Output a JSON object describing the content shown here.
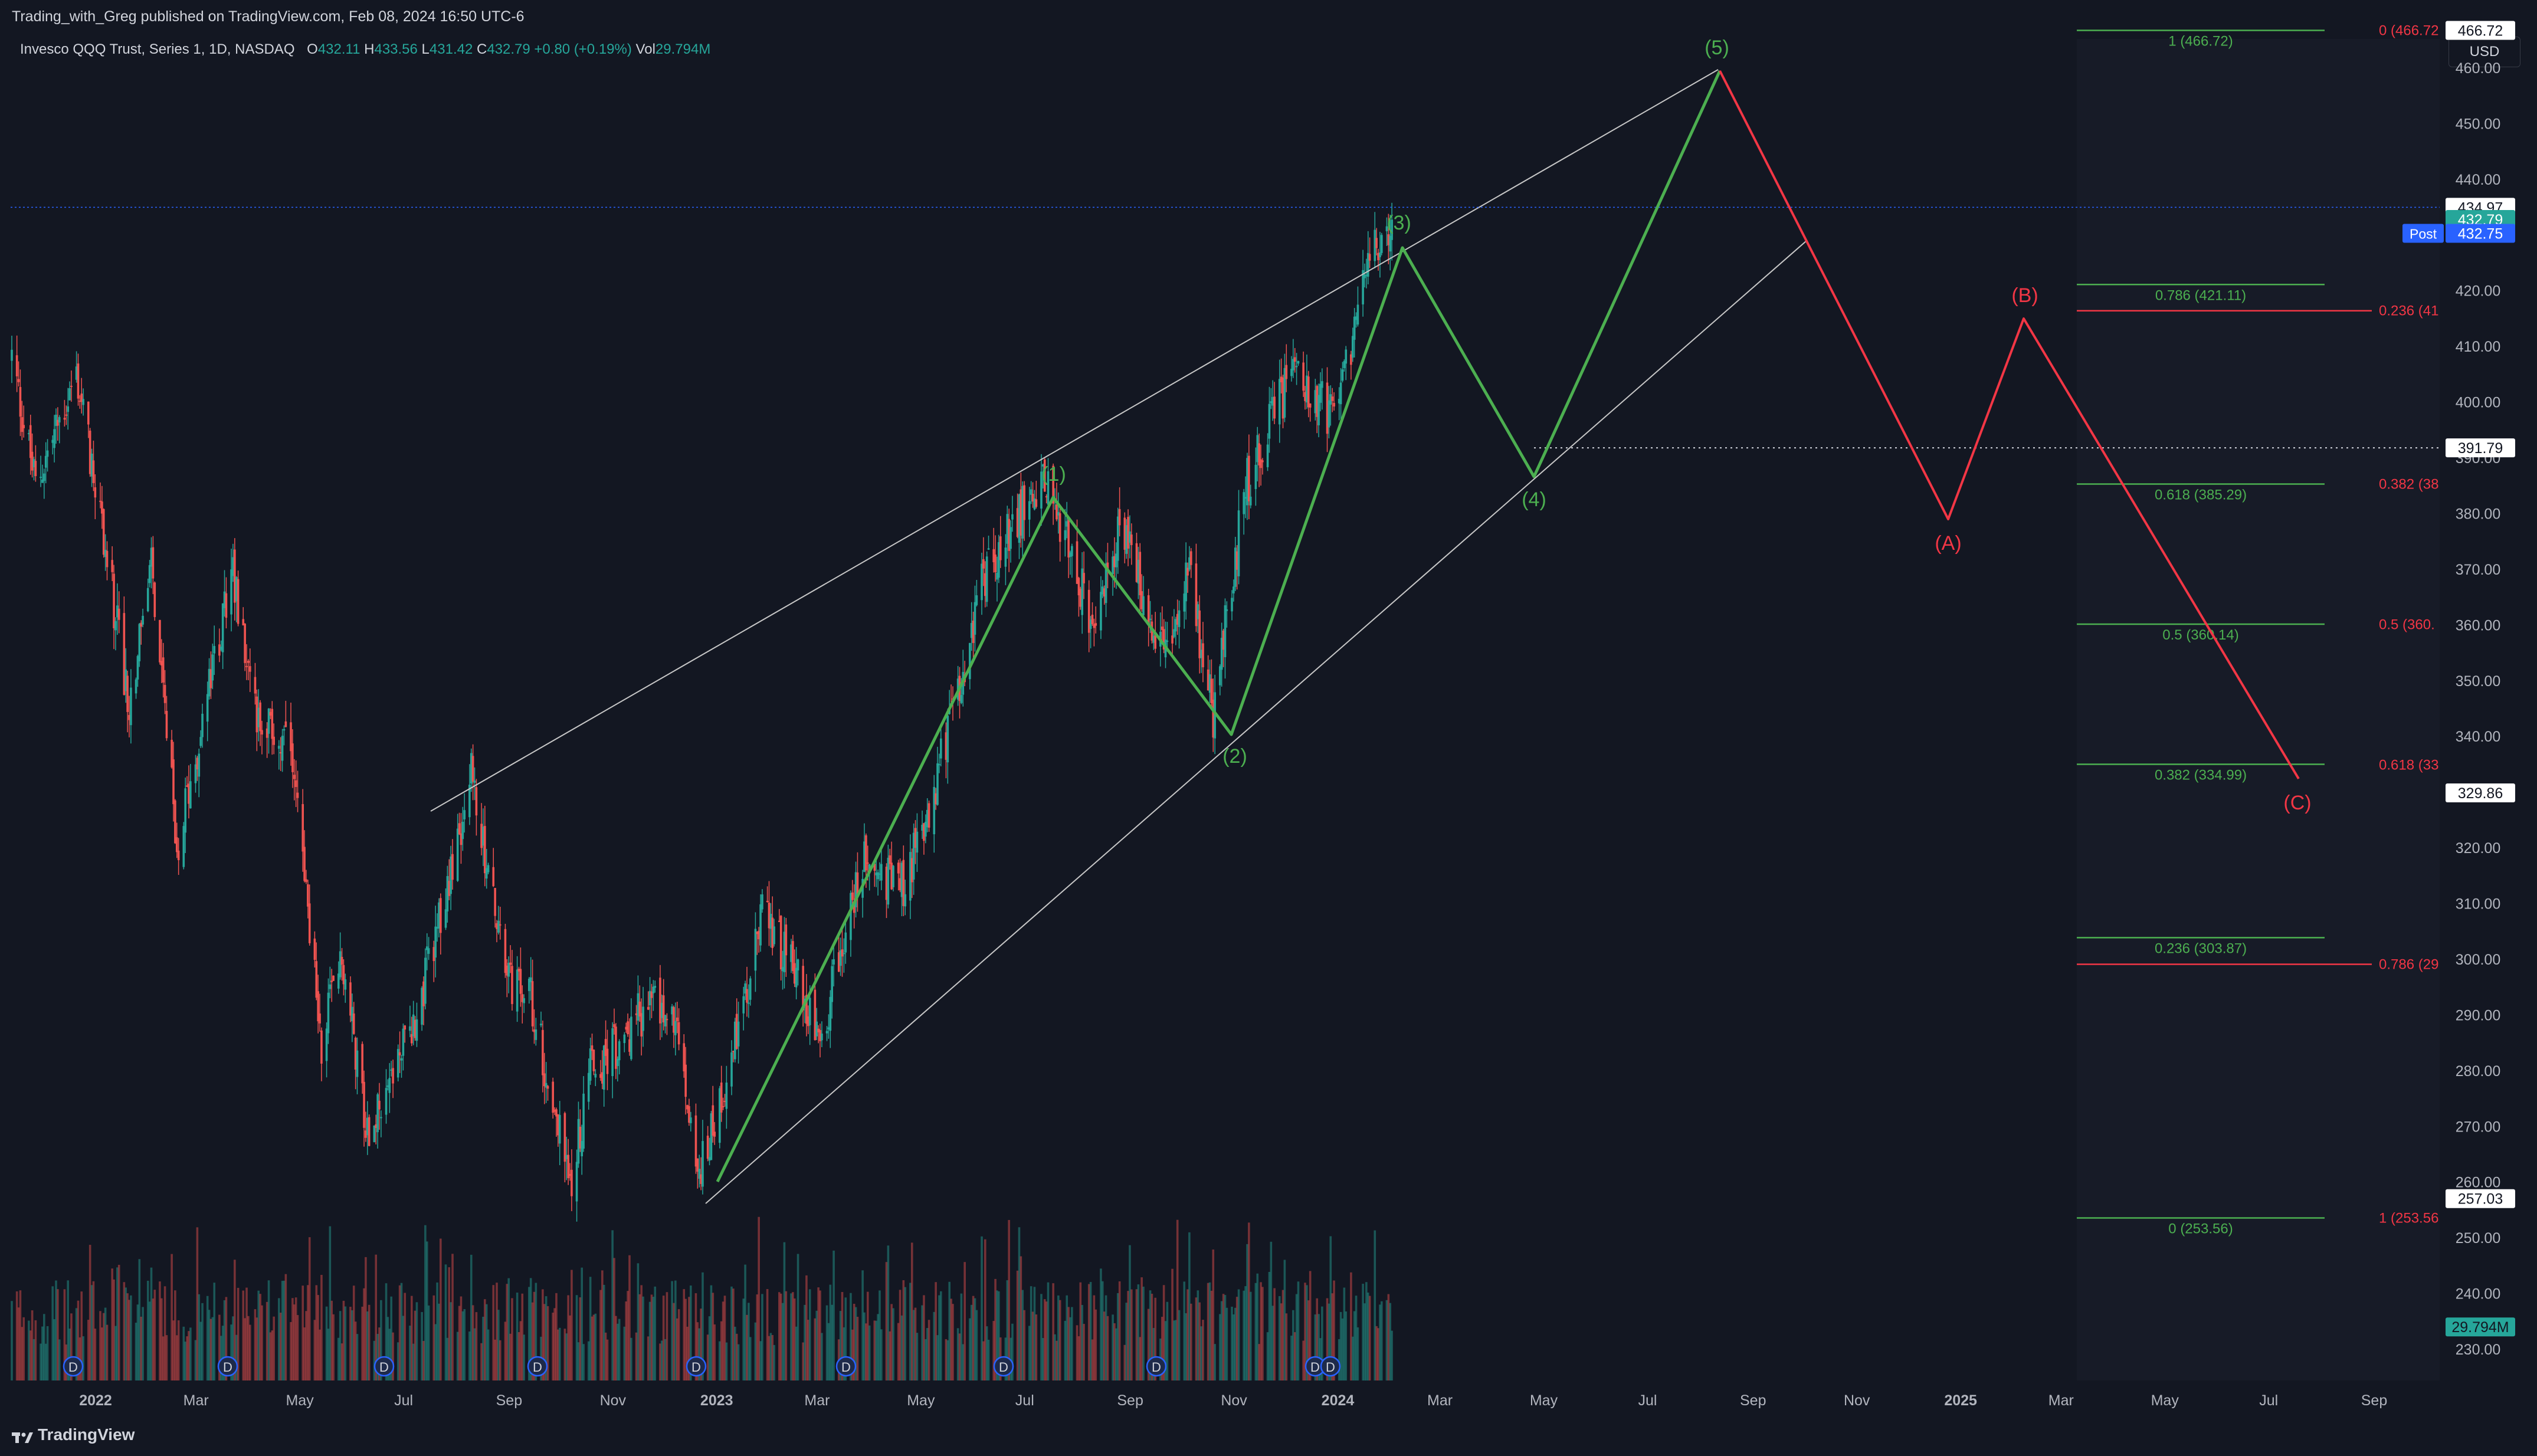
{
  "header": {
    "publisher_line": "Trading_with_Greg published on TradingView.com, Feb 08, 2024 16:50 UTC-6"
  },
  "legend": {
    "symbol": "Invesco QQQ Trust, Series 1, 1D, NASDAQ",
    "open_label": "O",
    "open": "432.11",
    "high_label": "H",
    "high": "433.56",
    "low_label": "L",
    "low": "431.42",
    "close_label": "C",
    "close": "432.79",
    "change": "+0.80 (+0.19%)",
    "vol_label": "Vol",
    "vol": "29.794M"
  },
  "currency_button": "USD",
  "footer": {
    "brand": "TradingView"
  },
  "colors": {
    "bg": "#131722",
    "up": "#26a69a",
    "down": "#ef5350",
    "wave_green": "#4caf50",
    "wave_red": "#f23645",
    "channel": "#c8c8c8",
    "grid_text": "#b2b5be",
    "blue_line": "#2962ff"
  },
  "chart_data": {
    "type": "candlestick",
    "symbol": "QQQ",
    "ylim": [
      225,
      470
    ],
    "y_ticks": [
      230,
      240,
      250,
      260,
      270,
      280,
      290,
      300,
      310,
      320,
      330,
      340,
      350,
      360,
      370,
      380,
      390,
      400,
      410,
      420,
      430,
      440,
      450,
      460
    ],
    "x_ticks": [
      {
        "date": "2022-01-01",
        "label": "2022",
        "bold": true
      },
      {
        "date": "2022-03-01",
        "label": "Mar"
      },
      {
        "date": "2022-05-01",
        "label": "May"
      },
      {
        "date": "2022-07-01",
        "label": "Jul"
      },
      {
        "date": "2022-09-01",
        "label": "Sep"
      },
      {
        "date": "2022-11-01",
        "label": "Nov"
      },
      {
        "date": "2023-01-01",
        "label": "2023",
        "bold": true
      },
      {
        "date": "2023-03-01",
        "label": "Mar"
      },
      {
        "date": "2023-05-01",
        "label": "May"
      },
      {
        "date": "2023-07-01",
        "label": "Jul"
      },
      {
        "date": "2023-09-01",
        "label": "Sep"
      },
      {
        "date": "2023-11-01",
        "label": "Nov"
      },
      {
        "date": "2024-01-01",
        "label": "2024",
        "bold": true
      },
      {
        "date": "2024-03-01",
        "label": "Mar"
      },
      {
        "date": "2024-05-01",
        "label": "May"
      },
      {
        "date": "2024-07-01",
        "label": "Jul"
      },
      {
        "date": "2024-09-01",
        "label": "Sep"
      },
      {
        "date": "2024-11-01",
        "label": "Nov"
      },
      {
        "date": "2025-01-01",
        "label": "2025",
        "bold": true
      },
      {
        "date": "2025-03-01",
        "label": "Mar"
      },
      {
        "date": "2025-05-01",
        "label": "May"
      },
      {
        "date": "2025-07-01",
        "label": "Jul"
      },
      {
        "date": "2025-09-01",
        "label": "Sep"
      }
    ],
    "price_path": [
      [
        "2021-11-19",
        408
      ],
      [
        "2021-12-03",
        385
      ],
      [
        "2021-12-27",
        405
      ],
      [
        "2022-01-10",
        380
      ],
      [
        "2022-01-27",
        345
      ],
      [
        "2022-02-09",
        370
      ],
      [
        "2022-02-24",
        320
      ],
      [
        "2022-03-29",
        370
      ],
      [
        "2022-04-12",
        345
      ],
      [
        "2022-05-04",
        335
      ],
      [
        "2022-05-20",
        285
      ],
      [
        "2022-06-01",
        300
      ],
      [
        "2022-06-16",
        270
      ],
      [
        "2022-07-15",
        290
      ],
      [
        "2022-08-16",
        333
      ],
      [
        "2022-09-06",
        296
      ],
      [
        "2022-09-20",
        293
      ],
      [
        "2022-10-13",
        260
      ],
      [
        "2022-10-25",
        280
      ],
      [
        "2022-11-10",
        284
      ],
      [
        "2022-11-30",
        293
      ],
      [
        "2022-12-14",
        288
      ],
      [
        "2022-12-28",
        261
      ],
      [
        "2023-01-27",
        295
      ],
      [
        "2023-02-02",
        310
      ],
      [
        "2023-03-10",
        287
      ],
      [
        "2023-04-03",
        318
      ],
      [
        "2023-04-25",
        312
      ],
      [
        "2023-05-15",
        330
      ],
      [
        "2023-06-15",
        371
      ],
      [
        "2023-07-19",
        387
      ],
      [
        "2023-08-18",
        358
      ],
      [
        "2023-09-01",
        378
      ],
      [
        "2023-09-27",
        355
      ],
      [
        "2023-10-11",
        370
      ],
      [
        "2023-10-26",
        344
      ],
      [
        "2023-11-14",
        385
      ],
      [
        "2023-12-14",
        407
      ],
      [
        "2024-01-05",
        396
      ],
      [
        "2024-01-24",
        424
      ],
      [
        "2024-02-08",
        432.79
      ]
    ],
    "volume_bars": 40,
    "annotations": {
      "impulse_waves": [
        {
          "label": "(1)",
          "date": "2023-07-19",
          "price": 387
        },
        {
          "label": "(2)",
          "date": "2023-10-26",
          "price": 343
        },
        {
          "label": "(3)",
          "date": "2024-02-08",
          "price": 434
        },
        {
          "label": "(4)",
          "date": "2024-05-08",
          "price": 392
        },
        {
          "label": "(5)",
          "date": "2024-08-22",
          "price": 466
        }
      ],
      "corrective_waves": [
        {
          "label": "(A)",
          "date": "2024-12-18",
          "price": 385
        },
        {
          "label": "(B)",
          "date": "2025-02-25",
          "price": 421
        },
        {
          "label": "(C)",
          "date": "2025-07-15",
          "price": 335
        }
      ],
      "channel_upper": [
        [
          "2022-08-16",
          330
        ],
        [
          "2024-08-22",
          466
        ]
      ],
      "channel_lower": [
        [
          "2022-12-28",
          258
        ],
        [
          "2024-10-01",
          436
        ]
      ],
      "fib_green": [
        {
          "label": "1 (466.72)",
          "price": 466.72
        },
        {
          "label": "0.786 (421.11)",
          "price": 421.11
        },
        {
          "label": "0.618 (385.29)",
          "price": 385.29
        },
        {
          "label": "0.5 (360.14)",
          "price": 360.14
        },
        {
          "label": "0.382 (334.99)",
          "price": 334.99
        },
        {
          "label": "0.236 (303.87)",
          "price": 303.87
        },
        {
          "label": "0 (253.56)",
          "price": 253.56
        }
      ],
      "fib_red": [
        {
          "label": "0 (466.72",
          "price": 466.72
        },
        {
          "label": "0.236 (41",
          "price": 416.4
        },
        {
          "label": "0.382 (38",
          "price": 385.3
        },
        {
          "label": "0.5 (360.",
          "price": 360.1
        },
        {
          "label": "0.618 (33",
          "price": 334.9
        },
        {
          "label": "0.786 (29",
          "price": 299.1
        },
        {
          "label": "1 (253.56",
          "price": 253.56
        }
      ],
      "current_price_line": 434.97,
      "dotted_line": 391.79
    },
    "price_labels": [
      {
        "text": "466.72",
        "price": 466.72,
        "style": "white"
      },
      {
        "text": "434.97",
        "price": 434.97,
        "style": "white"
      },
      {
        "text": "432.79",
        "price": 432.79,
        "style": "green"
      },
      {
        "text": "432.75",
        "price": 430.3,
        "style": "blue",
        "tag": "Post"
      },
      {
        "text": "391.79",
        "price": 391.79,
        "style": "white"
      },
      {
        "text": "329.86",
        "price": 329.86,
        "style": "white"
      },
      {
        "text": "257.03",
        "price": 257.03,
        "style": "white"
      },
      {
        "text": "29.794M",
        "price": 234.0,
        "style": "teal"
      }
    ],
    "dividend_markers": [
      "2022-01-01",
      "2022-03-15",
      "2022-06-20",
      "2022-09-20",
      "2022-12-20",
      "2023-03-20",
      "2023-06-20",
      "2023-09-20",
      "2023-12-18",
      "2023-12-25"
    ],
    "dividend_label": "D"
  }
}
